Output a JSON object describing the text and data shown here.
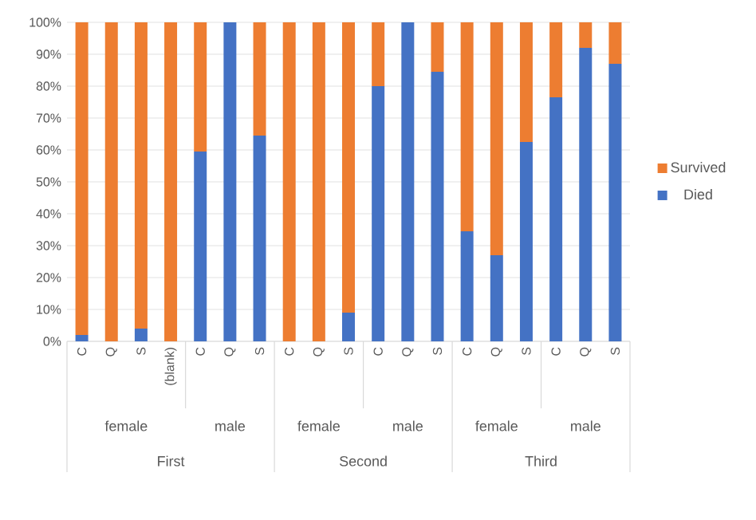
{
  "chart_data": {
    "type": "bar",
    "stacked": true,
    "categories": [
      "C",
      "Q",
      "S",
      "(blank)",
      "C",
      "Q",
      "S",
      "C",
      "Q",
      "S",
      "C",
      "Q",
      "S",
      "C",
      "Q",
      "S",
      "C",
      "Q",
      "S"
    ],
    "series": [
      {
        "name": "Died",
        "color": "#4472c4",
        "values": [
          2,
          0,
          4,
          0,
          59.5,
          100,
          64.5,
          0,
          0,
          9,
          80,
          100,
          84.5,
          34.5,
          27,
          62.5,
          76.5,
          92,
          87
        ]
      },
      {
        "name": "Survived",
        "color": "#ed7d31",
        "values": [
          98,
          100,
          96,
          100,
          40.5,
          0,
          35.5,
          100,
          100,
          91,
          20,
          0,
          15.5,
          65.5,
          73,
          37.5,
          23.5,
          8,
          13
        ]
      }
    ],
    "ylim": [
      0,
      100
    ],
    "yticks": [
      {
        "value": 0,
        "label": "0%"
      },
      {
        "value": 10,
        "label": "10%"
      },
      {
        "value": 20,
        "label": "20%"
      },
      {
        "value": 30,
        "label": "30%"
      },
      {
        "value": 40,
        "label": "40%"
      },
      {
        "value": 50,
        "label": "50%"
      },
      {
        "value": 60,
        "label": "60%"
      },
      {
        "value": 70,
        "label": "70%"
      },
      {
        "value": 80,
        "label": "80%"
      },
      {
        "value": 90,
        "label": "90%"
      },
      {
        "value": 100,
        "label": "100%"
      }
    ],
    "grid": "y",
    "legend": "right",
    "annotations": [
      "female",
      "male",
      "female",
      "male",
      "female",
      "male",
      "First",
      "Second",
      "Third"
    ]
  }
}
